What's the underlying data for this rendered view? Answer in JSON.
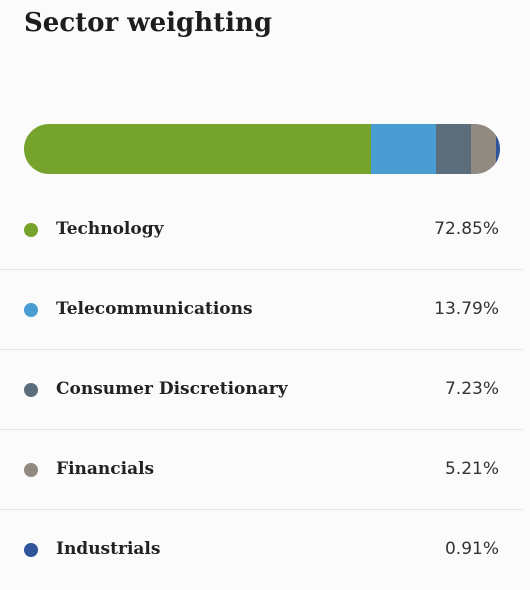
{
  "title": "Sector weighting",
  "sectors": [
    {
      "name": "Technology",
      "percent_label": "72.85%",
      "value": 72.85,
      "color": "#76a32c"
    },
    {
      "name": "Telecommunications",
      "percent_label": "13.79%",
      "value": 13.79,
      "color": "#4a9dd3"
    },
    {
      "name": "Consumer Discretionary",
      "percent_label": "7.23%",
      "value": 7.23,
      "color": "#5c6e7c"
    },
    {
      "name": "Financials",
      "percent_label": "5.21%",
      "value": 5.21,
      "color": "#918a80"
    },
    {
      "name": "Industrials",
      "percent_label": "0.91%",
      "value": 0.91,
      "color": "#2f559b"
    }
  ]
}
